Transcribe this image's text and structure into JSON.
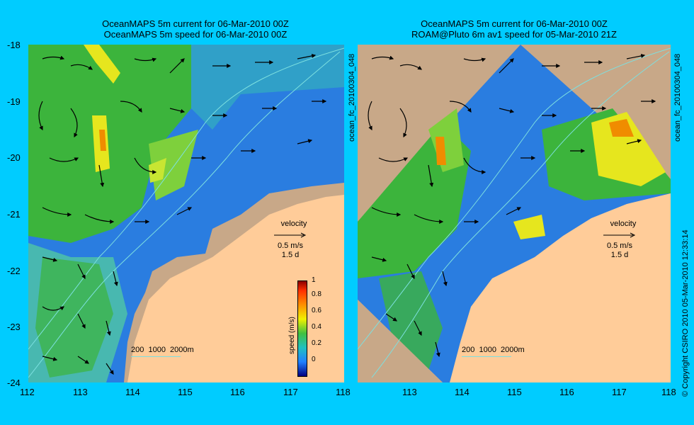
{
  "left_panel": {
    "title_line1": "OceanMAPS 5m current for 06-Mar-2010 00Z",
    "title_line2": "OceanMAPS 5m speed for 06-Mar-2010 00Z",
    "side_label": "ocean_fc_20100304_048"
  },
  "right_panel": {
    "title_line1": "OceanMAPS 5m current for 06-Mar-2010 00Z",
    "title_line2": "ROAM@Pluto 6m av1 speed for 05-Mar-2010 21Z",
    "side_label": "ocean_fc_20100304_048"
  },
  "axes": {
    "lat_labels": [
      "-18",
      "-19",
      "-20",
      "-21",
      "-22",
      "-23",
      "-24"
    ],
    "lon_labels": [
      "112",
      "113",
      "114",
      "115",
      "116",
      "117",
      "118"
    ]
  },
  "velocity_legend": {
    "title": "velocity",
    "speed": "0.5 m/s",
    "duration": "1.5 d"
  },
  "colorbar": {
    "label": "speed (m/s)",
    "ticks": [
      "1",
      "0.8",
      "0.6",
      "0.4",
      "0.2",
      "0"
    ]
  },
  "contour_legend": {
    "values": "200  1000  2000m"
  },
  "copyright": "© Copyright CSIRO 2010   05-Mar-2010 12:33:14",
  "colors": {
    "background": "#00ccff",
    "land": "#ffcc99",
    "shelf_land": "#c8a888",
    "deep_blue": "#1e6ee6",
    "green": "#3cb43c",
    "yellow": "#e6e61e",
    "orange": "#f08c00"
  }
}
